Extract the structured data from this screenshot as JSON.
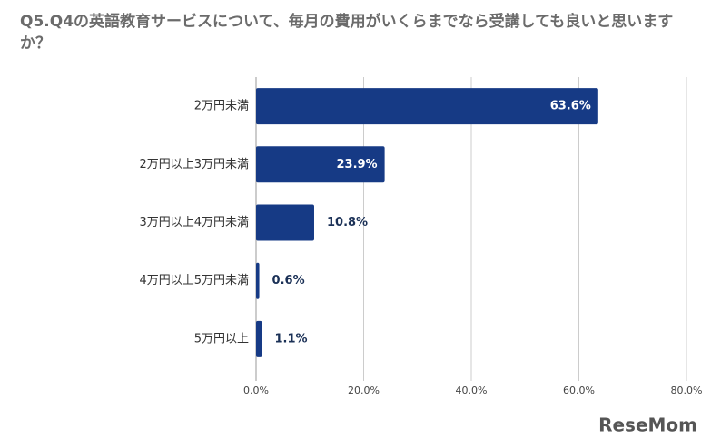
{
  "chart_data": {
    "type": "bar",
    "orientation": "horizontal",
    "title": "Q5.Q4の英語教育サービスについて、毎月の費用がいくらまでなら受講しても良いと思いますか？",
    "categories": [
      "2万円未満",
      "2万円以上3万円未満",
      "3万円以上4万円未満",
      "4万円以上5万円未満",
      "5万円以上"
    ],
    "values": [
      63.6,
      23.9,
      10.8,
      0.6,
      1.1
    ],
    "value_labels": [
      "63.6%",
      "23.9%",
      "10.8%",
      "0.6%",
      "1.1%"
    ],
    "color": "#163a85",
    "xlim": [
      0,
      80
    ],
    "xticks": [
      {
        "value": 0,
        "label": "0.0%"
      },
      {
        "value": 20,
        "label": "20.0%"
      },
      {
        "value": 40,
        "label": "40.0%"
      },
      {
        "value": 60,
        "label": "60.0%"
      },
      {
        "value": 80,
        "label": "80.0%"
      }
    ],
    "grid": true
  },
  "watermark": "ReseMom"
}
